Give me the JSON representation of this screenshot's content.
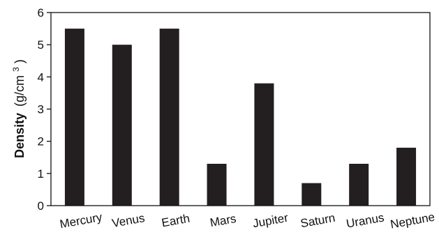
{
  "chart_data": {
    "type": "bar",
    "categories": [
      "Mercury",
      "Venus",
      "Earth",
      "Mars",
      "Jupiter",
      "Saturn",
      "Uranus",
      "Neptune"
    ],
    "values": [
      5.5,
      5.0,
      5.5,
      1.3,
      3.8,
      0.7,
      1.3,
      1.8
    ],
    "title": "",
    "xlabel": "",
    "ylabel": {
      "main": "Density",
      "unit_open": "(g/cm",
      "unit_sup": "3",
      "unit_close": ")"
    },
    "ylim": [
      0,
      6
    ],
    "yticks": [
      "0",
      "1",
      "2",
      "3",
      "4",
      "5",
      "6"
    ],
    "grid": false,
    "legend": "none",
    "bar_color": "#231f20",
    "axis_color": "#111111"
  }
}
